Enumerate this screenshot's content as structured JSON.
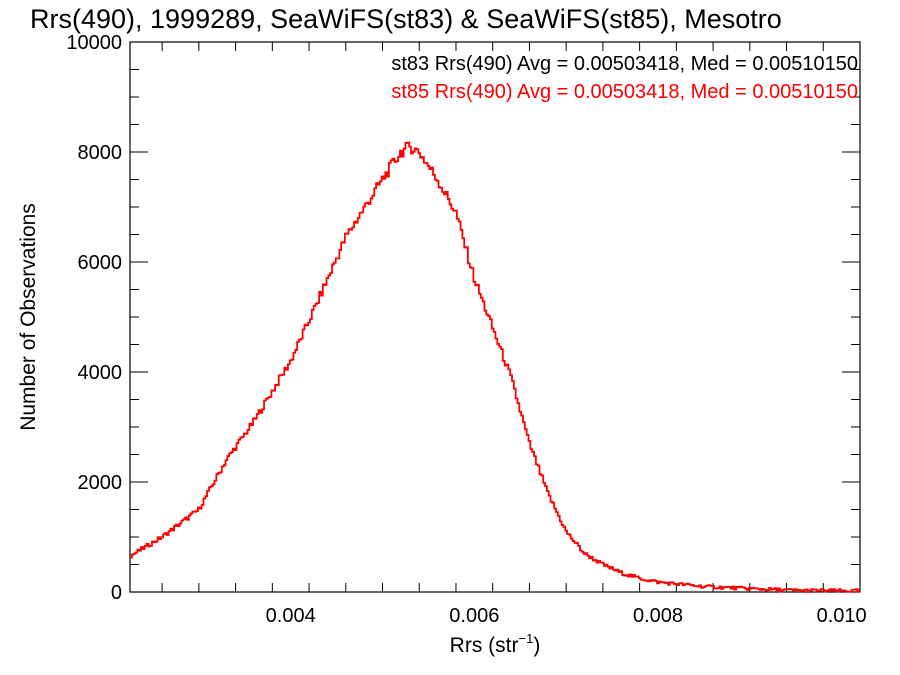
{
  "chart_data": {
    "type": "histogram",
    "title": "Rrs(490), 1999289, SeaWiFS(st83) & SeaWiFS(st85), Mesotro",
    "xlabel_base": "Rrs (str",
    "xlabel_sup": "−1",
    "xlabel_close": ")",
    "ylabel": "Number of Observations",
    "xlim": [
      0.00225,
      0.0102
    ],
    "ylim": [
      0,
      10000
    ],
    "x_ticks": [
      {
        "value": 0.004,
        "label": "0.004"
      },
      {
        "value": 0.006,
        "label": "0.006"
      },
      {
        "value": 0.008,
        "label": "0.008"
      },
      {
        "value": 0.01,
        "label": "0.010"
      }
    ],
    "y_ticks": [
      {
        "value": 0,
        "label": "0"
      },
      {
        "value": 2000,
        "label": "2000"
      },
      {
        "value": 4000,
        "label": "4000"
      },
      {
        "value": 6000,
        "label": "6000"
      },
      {
        "value": 8000,
        "label": "8000"
      },
      {
        "value": 10000,
        "label": "10000"
      }
    ],
    "annotations": [
      {
        "text": "st83 Rrs(490) Avg = 0.00503418, Med = 0.00510150",
        "color": "#000000"
      },
      {
        "text": "st85 Rrs(490) Avg = 0.00503418, Med = 0.00510150",
        "color": "#ff0000"
      }
    ],
    "series": [
      {
        "color": "#ff0000",
        "profile_x": [
          0.00225,
          0.0026,
          0.003,
          0.0033,
          0.0036,
          0.004,
          0.0043,
          0.0046,
          0.005,
          0.0052,
          0.0053,
          0.0054,
          0.0056,
          0.0058,
          0.006,
          0.0062,
          0.0064,
          0.0066,
          0.0068,
          0.007,
          0.0072,
          0.0074,
          0.0076,
          0.0078,
          0.008,
          0.0085,
          0.009,
          0.0095,
          0.0102
        ],
        "profile_y": [
          650,
          1000,
          1500,
          2400,
          3100,
          4200,
          5300,
          6450,
          7500,
          8000,
          8100,
          8000,
          7500,
          6900,
          5700,
          4800,
          3900,
          2700,
          1800,
          1100,
          700,
          500,
          350,
          250,
          180,
          100,
          60,
          30,
          20
        ]
      }
    ]
  }
}
